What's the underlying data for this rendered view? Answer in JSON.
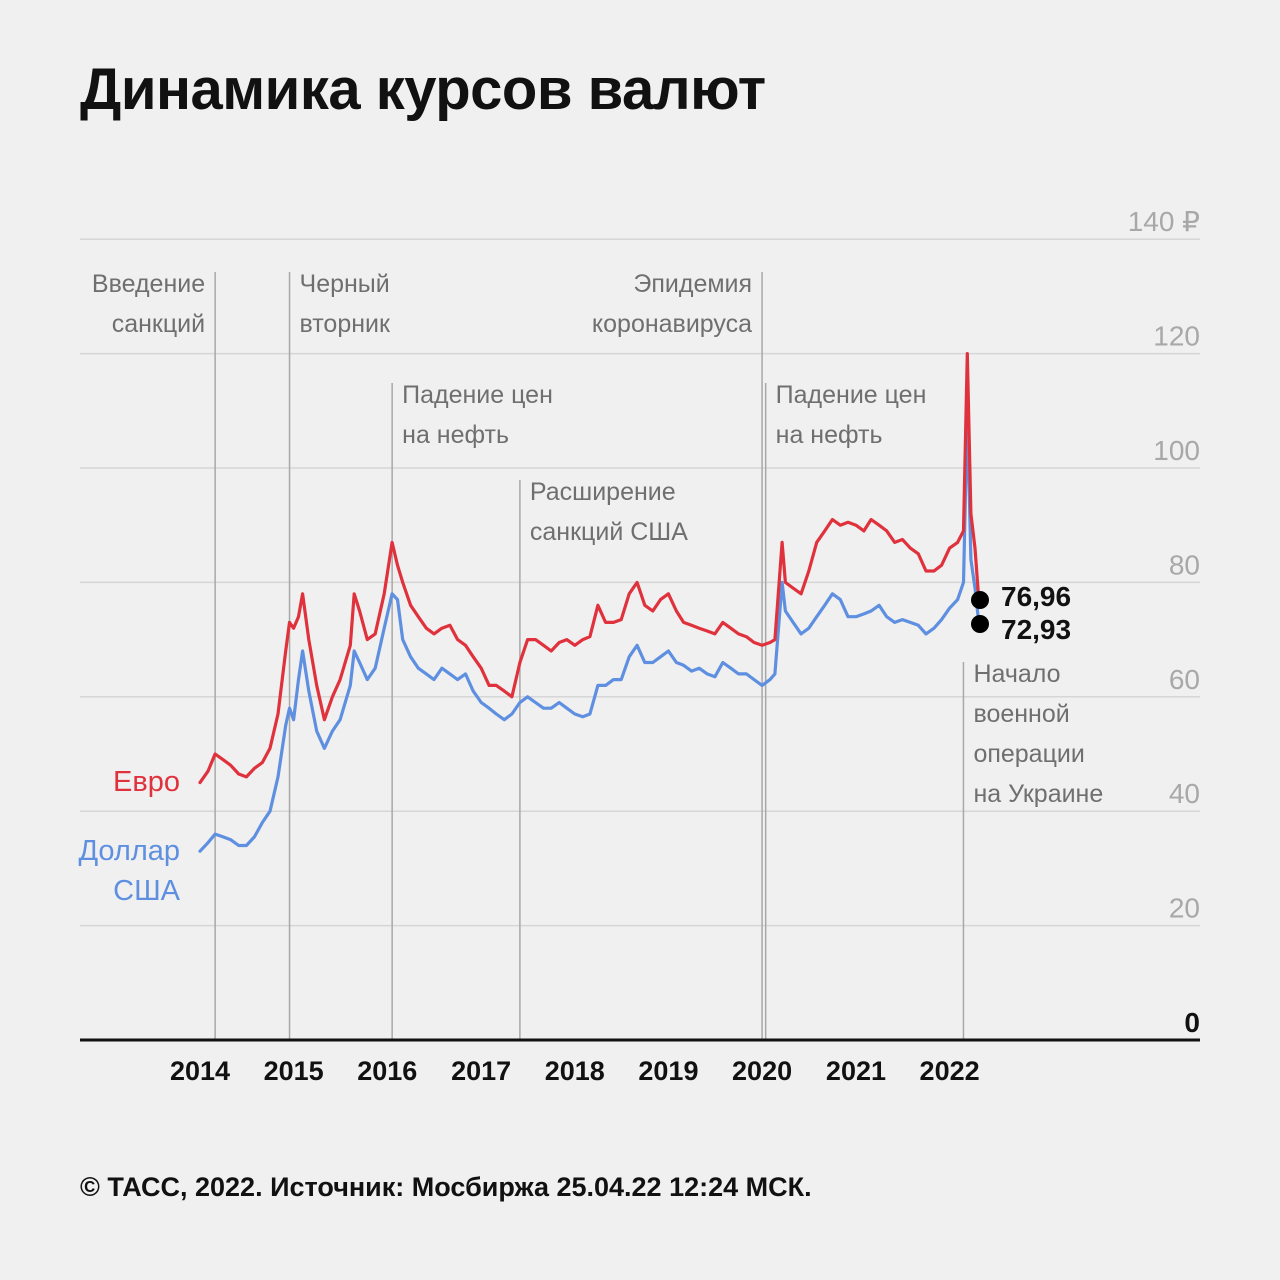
{
  "title": "Динамика курсов валют",
  "footer": "© ТАСС, 2022. Источник: Мосбиржа 25.04.22 12:24 МСК.",
  "colors": {
    "euro": "#e0323c",
    "usd": "#5e8fe0",
    "grid": "#d6d6d6",
    "event_line": "#a8a8a8",
    "background": "#f0f0f0"
  },
  "chart_data": {
    "type": "line",
    "title": "Динамика курсов валют",
    "xlabel": "",
    "ylabel": "",
    "x_ticks": [
      "2014",
      "2015",
      "2016",
      "2017",
      "2018",
      "2019",
      "2020",
      "2021",
      "2022"
    ],
    "y_ticks": [
      "0",
      "20",
      "40",
      "60",
      "80",
      "100",
      "120",
      "140 ₽"
    ],
    "ylim": [
      0,
      140
    ],
    "xlim": [
      "2014-01-01",
      "2022-12-31"
    ],
    "grid": true,
    "series": [
      {
        "name": "Евро",
        "label_lines": [
          "Евро"
        ],
        "color": "#e0323c",
        "end_value": 76.96,
        "end_label": "76,96",
        "points": [
          [
            "2014-01-01",
            45
          ],
          [
            "2014-02-01",
            47
          ],
          [
            "2014-03-01",
            50
          ],
          [
            "2014-04-01",
            49
          ],
          [
            "2014-05-01",
            48
          ],
          [
            "2014-06-01",
            46.5
          ],
          [
            "2014-07-01",
            46
          ],
          [
            "2014-08-01",
            47.5
          ],
          [
            "2014-09-01",
            48.5
          ],
          [
            "2014-10-01",
            51
          ],
          [
            "2014-11-01",
            57
          ],
          [
            "2014-12-01",
            68
          ],
          [
            "2014-12-16",
            73
          ],
          [
            "2015-01-01",
            72
          ],
          [
            "2015-01-20",
            74
          ],
          [
            "2015-02-05",
            78
          ],
          [
            "2015-03-01",
            70
          ],
          [
            "2015-04-01",
            62
          ],
          [
            "2015-05-01",
            56
          ],
          [
            "2015-06-01",
            60
          ],
          [
            "2015-07-01",
            63
          ],
          [
            "2015-08-10",
            69
          ],
          [
            "2015-08-25",
            78
          ],
          [
            "2015-09-15",
            75
          ],
          [
            "2015-10-15",
            70
          ],
          [
            "2015-11-15",
            71
          ],
          [
            "2015-12-20",
            78
          ],
          [
            "2016-01-20",
            87
          ],
          [
            "2016-02-10",
            83
          ],
          [
            "2016-03-01",
            80
          ],
          [
            "2016-04-01",
            76
          ],
          [
            "2016-05-01",
            74
          ],
          [
            "2016-06-01",
            72
          ],
          [
            "2016-07-01",
            71
          ],
          [
            "2016-08-01",
            72
          ],
          [
            "2016-09-01",
            72.5
          ],
          [
            "2016-10-01",
            70
          ],
          [
            "2016-11-01",
            69
          ],
          [
            "2016-12-01",
            67
          ],
          [
            "2017-01-01",
            65
          ],
          [
            "2017-02-01",
            62
          ],
          [
            "2017-03-01",
            62
          ],
          [
            "2017-04-01",
            61
          ],
          [
            "2017-05-01",
            60
          ],
          [
            "2017-06-01",
            66
          ],
          [
            "2017-07-01",
            70
          ],
          [
            "2017-08-01",
            70
          ],
          [
            "2017-09-01",
            69
          ],
          [
            "2017-10-01",
            68
          ],
          [
            "2017-11-01",
            69.5
          ],
          [
            "2017-12-01",
            70
          ],
          [
            "2018-01-01",
            69
          ],
          [
            "2018-02-01",
            70
          ],
          [
            "2018-03-01",
            70.5
          ],
          [
            "2018-04-01",
            76
          ],
          [
            "2018-05-01",
            73
          ],
          [
            "2018-06-01",
            73
          ],
          [
            "2018-07-01",
            73.5
          ],
          [
            "2018-08-01",
            78
          ],
          [
            "2018-09-01",
            80
          ],
          [
            "2018-10-01",
            76
          ],
          [
            "2018-11-01",
            75
          ],
          [
            "2018-12-01",
            77
          ],
          [
            "2019-01-01",
            78
          ],
          [
            "2019-02-01",
            75
          ],
          [
            "2019-03-01",
            73
          ],
          [
            "2019-04-01",
            72.5
          ],
          [
            "2019-05-01",
            72
          ],
          [
            "2019-06-01",
            71.5
          ],
          [
            "2019-07-01",
            71
          ],
          [
            "2019-08-01",
            73
          ],
          [
            "2019-09-01",
            72
          ],
          [
            "2019-10-01",
            71
          ],
          [
            "2019-11-01",
            70.5
          ],
          [
            "2019-12-01",
            69.5
          ],
          [
            "2020-01-01",
            69
          ],
          [
            "2020-02-01",
            69.5
          ],
          [
            "2020-02-20",
            70
          ],
          [
            "2020-03-19",
            87
          ],
          [
            "2020-04-01",
            80
          ],
          [
            "2020-05-01",
            79
          ],
          [
            "2020-06-01",
            78
          ],
          [
            "2020-07-01",
            82
          ],
          [
            "2020-08-01",
            87
          ],
          [
            "2020-09-01",
            89
          ],
          [
            "2020-10-01",
            91
          ],
          [
            "2020-11-01",
            90
          ],
          [
            "2020-12-01",
            90.5
          ],
          [
            "2021-01-01",
            90
          ],
          [
            "2021-02-01",
            89
          ],
          [
            "2021-03-01",
            91
          ],
          [
            "2021-04-01",
            90
          ],
          [
            "2021-05-01",
            89
          ],
          [
            "2021-06-01",
            87
          ],
          [
            "2021-07-01",
            87.5
          ],
          [
            "2021-08-01",
            86
          ],
          [
            "2021-09-01",
            85
          ],
          [
            "2021-10-01",
            82
          ],
          [
            "2021-11-01",
            82
          ],
          [
            "2021-12-01",
            83
          ],
          [
            "2022-01-01",
            86
          ],
          [
            "2022-02-01",
            87
          ],
          [
            "2022-02-24",
            89
          ],
          [
            "2022-03-11",
            120
          ],
          [
            "2022-03-25",
            92
          ],
          [
            "2022-04-10",
            86
          ],
          [
            "2022-04-25",
            76.96
          ]
        ]
      },
      {
        "name": "Доллар США",
        "label_lines": [
          "Доллар",
          "США"
        ],
        "color": "#5e8fe0",
        "end_value": 72.93,
        "end_label": "72,93",
        "points": [
          [
            "2014-01-01",
            33
          ],
          [
            "2014-02-01",
            34.5
          ],
          [
            "2014-03-01",
            36
          ],
          [
            "2014-04-01",
            35.5
          ],
          [
            "2014-05-01",
            35
          ],
          [
            "2014-06-01",
            34
          ],
          [
            "2014-07-01",
            34
          ],
          [
            "2014-08-01",
            35.5
          ],
          [
            "2014-09-01",
            38
          ],
          [
            "2014-10-01",
            40
          ],
          [
            "2014-11-01",
            46
          ],
          [
            "2014-12-01",
            55
          ],
          [
            "2014-12-16",
            58
          ],
          [
            "2015-01-01",
            56
          ],
          [
            "2015-01-20",
            63
          ],
          [
            "2015-02-05",
            68
          ],
          [
            "2015-03-01",
            61
          ],
          [
            "2015-04-01",
            54
          ],
          [
            "2015-05-01",
            51
          ],
          [
            "2015-06-01",
            54
          ],
          [
            "2015-07-01",
            56
          ],
          [
            "2015-08-10",
            62
          ],
          [
            "2015-08-25",
            68
          ],
          [
            "2015-09-15",
            66
          ],
          [
            "2015-10-15",
            63
          ],
          [
            "2015-11-15",
            65
          ],
          [
            "2015-12-20",
            72
          ],
          [
            "2016-01-20",
            78
          ],
          [
            "2016-02-10",
            77
          ],
          [
            "2016-03-01",
            70
          ],
          [
            "2016-04-01",
            67
          ],
          [
            "2016-05-01",
            65
          ],
          [
            "2016-06-01",
            64
          ],
          [
            "2016-07-01",
            63
          ],
          [
            "2016-08-01",
            65
          ],
          [
            "2016-09-01",
            64
          ],
          [
            "2016-10-01",
            63
          ],
          [
            "2016-11-01",
            64
          ],
          [
            "2016-12-01",
            61
          ],
          [
            "2017-01-01",
            59
          ],
          [
            "2017-02-01",
            58
          ],
          [
            "2017-03-01",
            57
          ],
          [
            "2017-04-01",
            56
          ],
          [
            "2017-05-01",
            57
          ],
          [
            "2017-06-01",
            59
          ],
          [
            "2017-07-01",
            60
          ],
          [
            "2017-08-01",
            59
          ],
          [
            "2017-09-01",
            58
          ],
          [
            "2017-10-01",
            58
          ],
          [
            "2017-11-01",
            59
          ],
          [
            "2017-12-01",
            58
          ],
          [
            "2018-01-01",
            57
          ],
          [
            "2018-02-01",
            56.5
          ],
          [
            "2018-03-01",
            57
          ],
          [
            "2018-04-01",
            62
          ],
          [
            "2018-05-01",
            62
          ],
          [
            "2018-06-01",
            63
          ],
          [
            "2018-07-01",
            63
          ],
          [
            "2018-08-01",
            67
          ],
          [
            "2018-09-01",
            69
          ],
          [
            "2018-10-01",
            66
          ],
          [
            "2018-11-01",
            66
          ],
          [
            "2018-12-01",
            67
          ],
          [
            "2019-01-01",
            68
          ],
          [
            "2019-02-01",
            66
          ],
          [
            "2019-03-01",
            65.5
          ],
          [
            "2019-04-01",
            64.5
          ],
          [
            "2019-05-01",
            65
          ],
          [
            "2019-06-01",
            64
          ],
          [
            "2019-07-01",
            63.5
          ],
          [
            "2019-08-01",
            66
          ],
          [
            "2019-09-01",
            65
          ],
          [
            "2019-10-01",
            64
          ],
          [
            "2019-11-01",
            64
          ],
          [
            "2019-12-01",
            63
          ],
          [
            "2020-01-01",
            62
          ],
          [
            "2020-02-01",
            63
          ],
          [
            "2020-02-20",
            64
          ],
          [
            "2020-03-19",
            80
          ],
          [
            "2020-04-01",
            75
          ],
          [
            "2020-05-01",
            73
          ],
          [
            "2020-06-01",
            71
          ],
          [
            "2020-07-01",
            72
          ],
          [
            "2020-08-01",
            74
          ],
          [
            "2020-09-01",
            76
          ],
          [
            "2020-10-01",
            78
          ],
          [
            "2020-11-01",
            77
          ],
          [
            "2020-12-01",
            74
          ],
          [
            "2021-01-01",
            74
          ],
          [
            "2021-02-01",
            74.5
          ],
          [
            "2021-03-01",
            75
          ],
          [
            "2021-04-01",
            76
          ],
          [
            "2021-05-01",
            74
          ],
          [
            "2021-06-01",
            73
          ],
          [
            "2021-07-01",
            73.5
          ],
          [
            "2021-08-01",
            73
          ],
          [
            "2021-09-01",
            72.5
          ],
          [
            "2021-10-01",
            71
          ],
          [
            "2021-11-01",
            72
          ],
          [
            "2021-12-01",
            73.5
          ],
          [
            "2022-01-01",
            75.5
          ],
          [
            "2022-02-01",
            77
          ],
          [
            "2022-02-24",
            80
          ],
          [
            "2022-03-11",
            110
          ],
          [
            "2022-03-25",
            84
          ],
          [
            "2022-04-10",
            79
          ],
          [
            "2022-04-25",
            72.93
          ]
        ]
      }
    ],
    "annotations": [
      {
        "date": "2014-03-01",
        "lines": [
          "Введение",
          "санкций"
        ],
        "align": "end",
        "row": 1
      },
      {
        "date": "2014-12-16",
        "lines": [
          "Черный",
          "вторник"
        ],
        "align": "start",
        "row": 1
      },
      {
        "date": "2016-01-20",
        "lines": [
          "Падение цен",
          "на нефть"
        ],
        "align": "start",
        "row": 2
      },
      {
        "date": "2017-06-01",
        "lines": [
          "Расширение",
          "санкций США"
        ],
        "align": "start",
        "row": 3
      },
      {
        "date": "2020-01-01",
        "lines": [
          "Эпидемия",
          "коронавируса"
        ],
        "align": "end",
        "row": 1
      },
      {
        "date": "2020-01-15",
        "lines": [
          "Падение цен",
          "на нефть"
        ],
        "align": "start",
        "row": 2
      },
      {
        "date": "2022-02-24",
        "lines": [
          "Начало",
          "военной",
          "операции",
          "на Украине"
        ],
        "align": "start",
        "row": 4
      }
    ]
  }
}
